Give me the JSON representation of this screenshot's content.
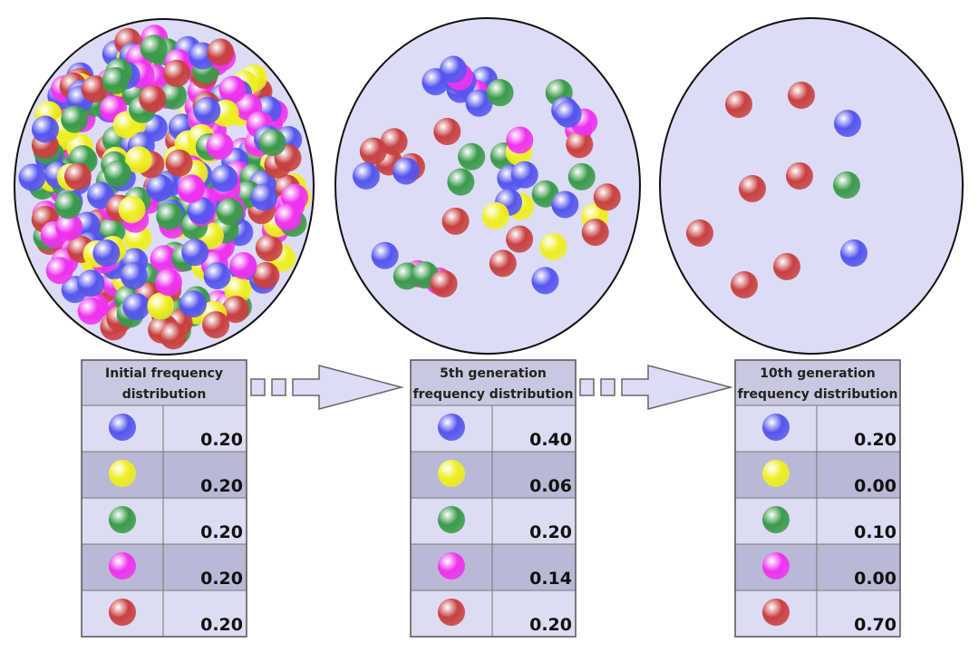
{
  "tables": [
    {
      "title_lines": [
        "Initial frequency",
        "distribution"
      ],
      "values": [
        "0.20",
        "0.20",
        "0.20",
        "0.20",
        "0.20"
      ]
    },
    {
      "title_lines": [
        "5th generation",
        "frequency distribution"
      ],
      "values": [
        "0.40",
        "0.06",
        "0.20",
        "0.14",
        "0.20"
      ]
    },
    {
      "title_lines": [
        "10th generation",
        "frequency distribution"
      ],
      "values": [
        "0.20",
        "0.00",
        "0.10",
        "0.00",
        "0.70"
      ]
    }
  ]
}
